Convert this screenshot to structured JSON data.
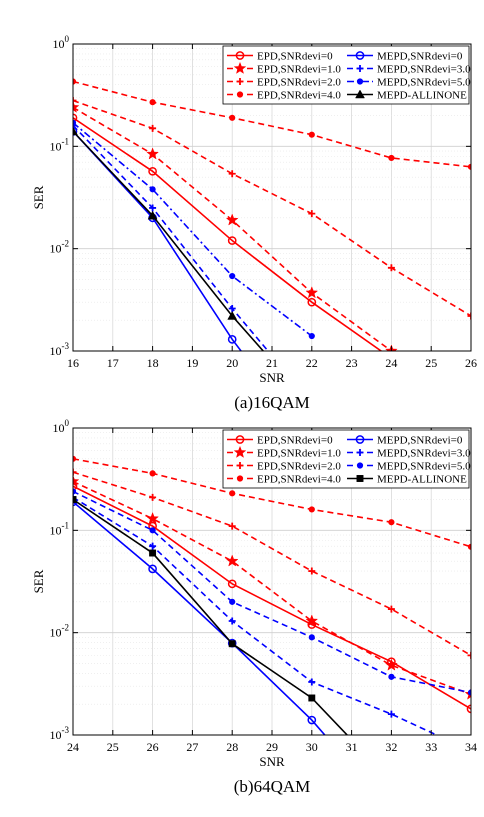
{
  "chart_data": [
    {
      "type": "line",
      "caption": "(a)16QAM",
      "xlabel": "SNR",
      "ylabel": "SER",
      "yscale": "log",
      "xlim": [
        16,
        26
      ],
      "ylim": [
        0.001,
        1
      ],
      "x_ticks": [
        16,
        17,
        18,
        19,
        20,
        21,
        22,
        23,
        24,
        25,
        26
      ],
      "grid": true,
      "legend_position": "top-right",
      "legend_columns": 2,
      "series": [
        {
          "name": "EPD,SNRdevi=0",
          "color": "#ff0000",
          "dash": "solid",
          "marker": "circle",
          "x": [
            16,
            18,
            20,
            22,
            24
          ],
          "y": [
            0.19,
            0.057,
            0.012,
            0.003,
            0.00085
          ]
        },
        {
          "name": "MEPD,SNRdevi=0",
          "color": "#0000ff",
          "dash": "solid",
          "marker": "circle",
          "x": [
            16,
            18,
            20,
            21
          ],
          "y": [
            0.14,
            0.02,
            0.0013,
            0.0004
          ]
        },
        {
          "name": "EPD,SNRdevi=1.0",
          "color": "#ff0000",
          "dash": "dashed",
          "marker": "star",
          "x": [
            16,
            18,
            20,
            22,
            24
          ],
          "y": [
            0.24,
            0.084,
            0.019,
            0.0037,
            0.001
          ]
        },
        {
          "name": "MEPD,SNRdevi=3.0",
          "color": "#0000ff",
          "dash": "dashed",
          "marker": "plus",
          "x": [
            16,
            18,
            20,
            21
          ],
          "y": [
            0.16,
            0.025,
            0.0026,
            0.0009
          ]
        },
        {
          "name": "EPD,SNRdevi=2.0",
          "color": "#ff0000",
          "dash": "dashed",
          "marker": "plus",
          "x": [
            16,
            18,
            20,
            22,
            24,
            26
          ],
          "y": [
            0.28,
            0.15,
            0.054,
            0.022,
            0.0065,
            0.0022
          ]
        },
        {
          "name": "MEPD,SNRdevi=5.0",
          "color": "#0000ff",
          "dash": "dashdot",
          "marker": "dot",
          "x": [
            16,
            18,
            20,
            22
          ],
          "y": [
            0.17,
            0.038,
            0.0054,
            0.0014
          ]
        },
        {
          "name": "EPD,SNRdevi=4.0",
          "color": "#ff0000",
          "dash": "dashed",
          "marker": "dot",
          "x": [
            16,
            18,
            20,
            22,
            24,
            26
          ],
          "y": [
            0.43,
            0.27,
            0.19,
            0.13,
            0.077,
            0.063
          ]
        },
        {
          "name": "MEPD-ALLINONE",
          "color": "#000000",
          "dash": "solid",
          "marker": "triangle",
          "x": [
            16,
            18,
            20,
            21
          ],
          "y": [
            0.14,
            0.021,
            0.0022,
            0.0008
          ]
        }
      ]
    },
    {
      "type": "line",
      "caption": "(b)64QAM",
      "xlabel": "SNR",
      "ylabel": "SER",
      "yscale": "log",
      "xlim": [
        24,
        34
      ],
      "ylim": [
        0.001,
        1
      ],
      "x_ticks": [
        24,
        25,
        26,
        27,
        28,
        29,
        30,
        31,
        32,
        33,
        34
      ],
      "grid": true,
      "legend_position": "top-right",
      "legend_columns": 2,
      "series": [
        {
          "name": "EPD,SNRdevi=0",
          "color": "#ff0000",
          "dash": "solid",
          "marker": "circle",
          "x": [
            24,
            26,
            28,
            30,
            32,
            34
          ],
          "y": [
            0.27,
            0.11,
            0.03,
            0.012,
            0.0052,
            0.0018
          ]
        },
        {
          "name": "MEPD,SNRdevi=0",
          "color": "#0000ff",
          "dash": "solid",
          "marker": "circle",
          "x": [
            24,
            26,
            28,
            30,
            31
          ],
          "y": [
            0.19,
            0.042,
            0.0079,
            0.0014,
            0.0005
          ]
        },
        {
          "name": "EPD,SNRdevi=1.0",
          "color": "#ff0000",
          "dash": "dashed",
          "marker": "star",
          "x": [
            24,
            26,
            28,
            30,
            32,
            34
          ],
          "y": [
            0.3,
            0.13,
            0.05,
            0.013,
            0.0048,
            0.0025
          ]
        },
        {
          "name": "MEPD,SNRdevi=3.0",
          "color": "#0000ff",
          "dash": "dashed",
          "marker": "plus",
          "x": [
            24,
            26,
            28,
            30,
            32,
            34
          ],
          "y": [
            0.21,
            0.07,
            0.013,
            0.0033,
            0.0016,
            0.0007
          ]
        },
        {
          "name": "EPD,SNRdevi=2.0",
          "color": "#ff0000",
          "dash": "dashed",
          "marker": "plus",
          "x": [
            24,
            26,
            28,
            30,
            32,
            34
          ],
          "y": [
            0.37,
            0.21,
            0.11,
            0.04,
            0.017,
            0.006
          ]
        },
        {
          "name": "MEPD,SNRdevi=5.0",
          "color": "#0000ff",
          "dash": "dashed",
          "marker": "dot",
          "x": [
            24,
            26,
            28,
            30,
            32,
            34
          ],
          "y": [
            0.24,
            0.1,
            0.02,
            0.009,
            0.0037,
            0.0026
          ]
        },
        {
          "name": "EPD,SNRdevi=4.0",
          "color": "#ff0000",
          "dash": "dashed",
          "marker": "dot",
          "x": [
            24,
            26,
            28,
            30,
            32,
            34
          ],
          "y": [
            0.5,
            0.36,
            0.23,
            0.16,
            0.12,
            0.069
          ]
        },
        {
          "name": "MEPD-ALLINONE",
          "color": "#000000",
          "dash": "solid",
          "marker": "square",
          "x": [
            24,
            26,
            28,
            30,
            31
          ],
          "y": [
            0.2,
            0.06,
            0.0078,
            0.0023,
            0.0009
          ]
        }
      ]
    }
  ]
}
